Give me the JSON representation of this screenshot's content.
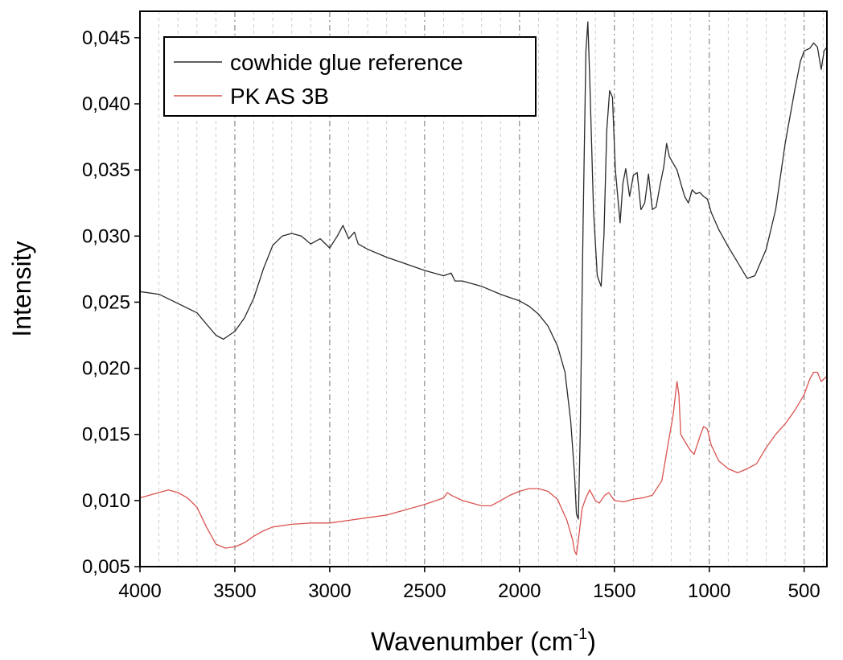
{
  "chart_data": {
    "type": "line",
    "xlabel": "Wavenumber (cm",
    "xlabel_sup": "-1",
    "xlabel_close": ")",
    "ylabel": "Intensity",
    "xlim": [
      4000,
      380
    ],
    "ylim": [
      0.005,
      0.047
    ],
    "x_ticks": [
      4000,
      3500,
      3000,
      2500,
      2000,
      1500,
      1000,
      500
    ],
    "x_tick_labels": [
      "4000",
      "3500",
      "3000",
      "2500",
      "2000",
      "1500",
      "1000",
      "500"
    ],
    "y_ticks": [
      0.005,
      0.01,
      0.015,
      0.02,
      0.025,
      0.03,
      0.035,
      0.04,
      0.045
    ],
    "y_tick_labels": [
      "0,005",
      "0,010",
      "0,015",
      "0,020",
      "0,025",
      "0,030",
      "0,035",
      "0,040",
      "0,045"
    ],
    "grid": {
      "major_every": 500,
      "minor_every": 100,
      "style": "vertical dashed",
      "major_color": "#7f7f7f",
      "minor_color": "#c8c8c8"
    },
    "legend_position": "top-left",
    "series": [
      {
        "name": "cowhide glue reference",
        "color": "#2a2a2a",
        "points": [
          [
            4000,
            0.0258
          ],
          [
            3900,
            0.0256
          ],
          [
            3800,
            0.0249
          ],
          [
            3700,
            0.0242
          ],
          [
            3600,
            0.0225
          ],
          [
            3560,
            0.0222
          ],
          [
            3500,
            0.0228
          ],
          [
            3450,
            0.0238
          ],
          [
            3400,
            0.0253
          ],
          [
            3350,
            0.0275
          ],
          [
            3300,
            0.0293
          ],
          [
            3250,
            0.03
          ],
          [
            3200,
            0.0302
          ],
          [
            3150,
            0.03
          ],
          [
            3100,
            0.0294
          ],
          [
            3050,
            0.0298
          ],
          [
            3000,
            0.0291
          ],
          [
            2960,
            0.03
          ],
          [
            2930,
            0.0308
          ],
          [
            2900,
            0.0298
          ],
          [
            2870,
            0.0303
          ],
          [
            2850,
            0.0294
          ],
          [
            2800,
            0.029
          ],
          [
            2700,
            0.0284
          ],
          [
            2600,
            0.0279
          ],
          [
            2500,
            0.0274
          ],
          [
            2400,
            0.027
          ],
          [
            2360,
            0.0272
          ],
          [
            2340,
            0.0266
          ],
          [
            2300,
            0.0266
          ],
          [
            2200,
            0.0262
          ],
          [
            2100,
            0.0256
          ],
          [
            2000,
            0.0251
          ],
          [
            1950,
            0.0247
          ],
          [
            1900,
            0.0241
          ],
          [
            1850,
            0.0232
          ],
          [
            1800,
            0.0217
          ],
          [
            1760,
            0.0197
          ],
          [
            1730,
            0.016
          ],
          [
            1710,
            0.012
          ],
          [
            1700,
            0.009
          ],
          [
            1690,
            0.0086
          ],
          [
            1680,
            0.015
          ],
          [
            1665,
            0.031
          ],
          [
            1650,
            0.044
          ],
          [
            1640,
            0.0462
          ],
          [
            1630,
            0.042
          ],
          [
            1610,
            0.032
          ],
          [
            1590,
            0.027
          ],
          [
            1570,
            0.0262
          ],
          [
            1555,
            0.03
          ],
          [
            1540,
            0.038
          ],
          [
            1525,
            0.041
          ],
          [
            1510,
            0.0405
          ],
          [
            1495,
            0.035
          ],
          [
            1470,
            0.031
          ],
          [
            1455,
            0.034
          ],
          [
            1440,
            0.0351
          ],
          [
            1420,
            0.033
          ],
          [
            1400,
            0.0346
          ],
          [
            1380,
            0.0348
          ],
          [
            1360,
            0.032
          ],
          [
            1340,
            0.0325
          ],
          [
            1320,
            0.0347
          ],
          [
            1300,
            0.032
          ],
          [
            1280,
            0.0322
          ],
          [
            1260,
            0.0338
          ],
          [
            1240,
            0.0352
          ],
          [
            1225,
            0.037
          ],
          [
            1210,
            0.036
          ],
          [
            1190,
            0.0355
          ],
          [
            1170,
            0.035
          ],
          [
            1150,
            0.034
          ],
          [
            1130,
            0.033
          ],
          [
            1110,
            0.0325
          ],
          [
            1090,
            0.0335
          ],
          [
            1070,
            0.0332
          ],
          [
            1050,
            0.0333
          ],
          [
            1030,
            0.033
          ],
          [
            1010,
            0.0328
          ],
          [
            990,
            0.0318
          ],
          [
            950,
            0.0305
          ],
          [
            900,
            0.0292
          ],
          [
            850,
            0.028
          ],
          [
            800,
            0.0268
          ],
          [
            760,
            0.027
          ],
          [
            700,
            0.029
          ],
          [
            650,
            0.032
          ],
          [
            600,
            0.037
          ],
          [
            550,
            0.041
          ],
          [
            520,
            0.0432
          ],
          [
            500,
            0.044
          ],
          [
            470,
            0.0442
          ],
          [
            450,
            0.0446
          ],
          [
            430,
            0.0443
          ],
          [
            410,
            0.0426
          ],
          [
            395,
            0.044
          ],
          [
            380,
            0.0443
          ]
        ]
      },
      {
        "name": "PK AS 3B",
        "color": "#d9534f",
        "points": [
          [
            4000,
            0.0102
          ],
          [
            3950,
            0.0104
          ],
          [
            3900,
            0.0106
          ],
          [
            3850,
            0.0108
          ],
          [
            3800,
            0.0106
          ],
          [
            3750,
            0.0102
          ],
          [
            3700,
            0.0095
          ],
          [
            3650,
            0.008
          ],
          [
            3600,
            0.0067
          ],
          [
            3550,
            0.0064
          ],
          [
            3500,
            0.0065
          ],
          [
            3450,
            0.0068
          ],
          [
            3400,
            0.0073
          ],
          [
            3350,
            0.0077
          ],
          [
            3300,
            0.008
          ],
          [
            3200,
            0.0082
          ],
          [
            3100,
            0.0083
          ],
          [
            3000,
            0.0083
          ],
          [
            2900,
            0.0085
          ],
          [
            2800,
            0.0087
          ],
          [
            2700,
            0.0089
          ],
          [
            2600,
            0.0093
          ],
          [
            2500,
            0.0097
          ],
          [
            2400,
            0.0102
          ],
          [
            2380,
            0.0106
          ],
          [
            2360,
            0.0104
          ],
          [
            2300,
            0.01
          ],
          [
            2250,
            0.0098
          ],
          [
            2200,
            0.0096
          ],
          [
            2150,
            0.0096
          ],
          [
            2100,
            0.01
          ],
          [
            2050,
            0.0104
          ],
          [
            2000,
            0.0107
          ],
          [
            1950,
            0.0109
          ],
          [
            1900,
            0.0109
          ],
          [
            1850,
            0.0107
          ],
          [
            1800,
            0.0101
          ],
          [
            1750,
            0.0085
          ],
          [
            1720,
            0.007
          ],
          [
            1710,
            0.0062
          ],
          [
            1700,
            0.0059
          ],
          [
            1690,
            0.007
          ],
          [
            1670,
            0.0094
          ],
          [
            1650,
            0.0102
          ],
          [
            1630,
            0.0108
          ],
          [
            1600,
            0.01
          ],
          [
            1580,
            0.0098
          ],
          [
            1550,
            0.0104
          ],
          [
            1530,
            0.0106
          ],
          [
            1500,
            0.01
          ],
          [
            1450,
            0.0099
          ],
          [
            1400,
            0.0101
          ],
          [
            1350,
            0.0102
          ],
          [
            1300,
            0.0104
          ],
          [
            1250,
            0.0115
          ],
          [
            1220,
            0.014
          ],
          [
            1190,
            0.0165
          ],
          [
            1170,
            0.019
          ],
          [
            1160,
            0.018
          ],
          [
            1150,
            0.015
          ],
          [
            1130,
            0.0145
          ],
          [
            1100,
            0.0138
          ],
          [
            1080,
            0.0135
          ],
          [
            1050,
            0.0148
          ],
          [
            1030,
            0.0156
          ],
          [
            1010,
            0.0154
          ],
          [
            990,
            0.0142
          ],
          [
            950,
            0.013
          ],
          [
            900,
            0.0124
          ],
          [
            850,
            0.0121
          ],
          [
            800,
            0.0124
          ],
          [
            750,
            0.0128
          ],
          [
            700,
            0.014
          ],
          [
            650,
            0.015
          ],
          [
            600,
            0.0158
          ],
          [
            550,
            0.0168
          ],
          [
            500,
            0.018
          ],
          [
            470,
            0.0192
          ],
          [
            450,
            0.0197
          ],
          [
            430,
            0.0197
          ],
          [
            410,
            0.019
          ],
          [
            395,
            0.0192
          ],
          [
            380,
            0.0194
          ]
        ]
      }
    ]
  }
}
